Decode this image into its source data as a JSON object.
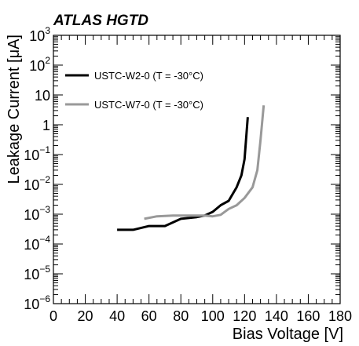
{
  "chart_data": {
    "type": "line",
    "title": "ATLAS HGTD",
    "xlabel": "Bias Voltage [V]",
    "ylabel": "Leakage Current [μA]",
    "xlim": [
      0,
      180
    ],
    "ylim": [
      1e-06,
      1000
    ],
    "yscale": "log",
    "x_ticks": [
      0,
      20,
      40,
      60,
      80,
      100,
      120,
      140,
      160,
      180
    ],
    "x_tick_labels": [
      "0",
      "20",
      "40",
      "60",
      "80",
      "100",
      "120",
      "140",
      "160",
      "180"
    ],
    "y_ticks": [
      {
        "value": 1e-06,
        "base": "10",
        "exp": "−6"
      },
      {
        "value": 1e-05,
        "base": "10",
        "exp": "−5"
      },
      {
        "value": 0.0001,
        "base": "10",
        "exp": "−4"
      },
      {
        "value": 0.001,
        "base": "10",
        "exp": "−3"
      },
      {
        "value": 0.01,
        "base": "10",
        "exp": "−2"
      },
      {
        "value": 0.1,
        "base": "10",
        "exp": "−1"
      },
      {
        "value": 1,
        "base": "1",
        "exp": ""
      },
      {
        "value": 10,
        "base": "10",
        "exp": ""
      },
      {
        "value": 100,
        "base": "10",
        "exp": "2"
      },
      {
        "value": 1000,
        "base": "10",
        "exp": "3"
      }
    ],
    "grid": false,
    "legend_position": "top-left",
    "series": [
      {
        "name": "USTC-W2-0 (T = -30°C)",
        "color": "#000000",
        "x": [
          40,
          50,
          60,
          70,
          80,
          90,
          95,
          100,
          105,
          110,
          115,
          118,
          120,
          122
        ],
        "y": [
          0.0003,
          0.0003,
          0.0004,
          0.0004,
          0.0007,
          0.0008,
          0.0009,
          0.0012,
          0.002,
          0.0028,
          0.008,
          0.02,
          0.07,
          1.8
        ]
      },
      {
        "name": "USTC-W7-0 (T = -30°C)",
        "color": "#999999",
        "x": [
          57,
          65,
          75,
          85,
          95,
          100,
          105,
          110,
          115,
          120,
          125,
          128,
          130,
          132
        ],
        "y": [
          0.0007,
          0.00085,
          0.0009,
          0.0009,
          0.0009,
          0.00085,
          0.00095,
          0.0015,
          0.002,
          0.0035,
          0.008,
          0.03,
          0.3,
          4.5
        ]
      }
    ]
  }
}
